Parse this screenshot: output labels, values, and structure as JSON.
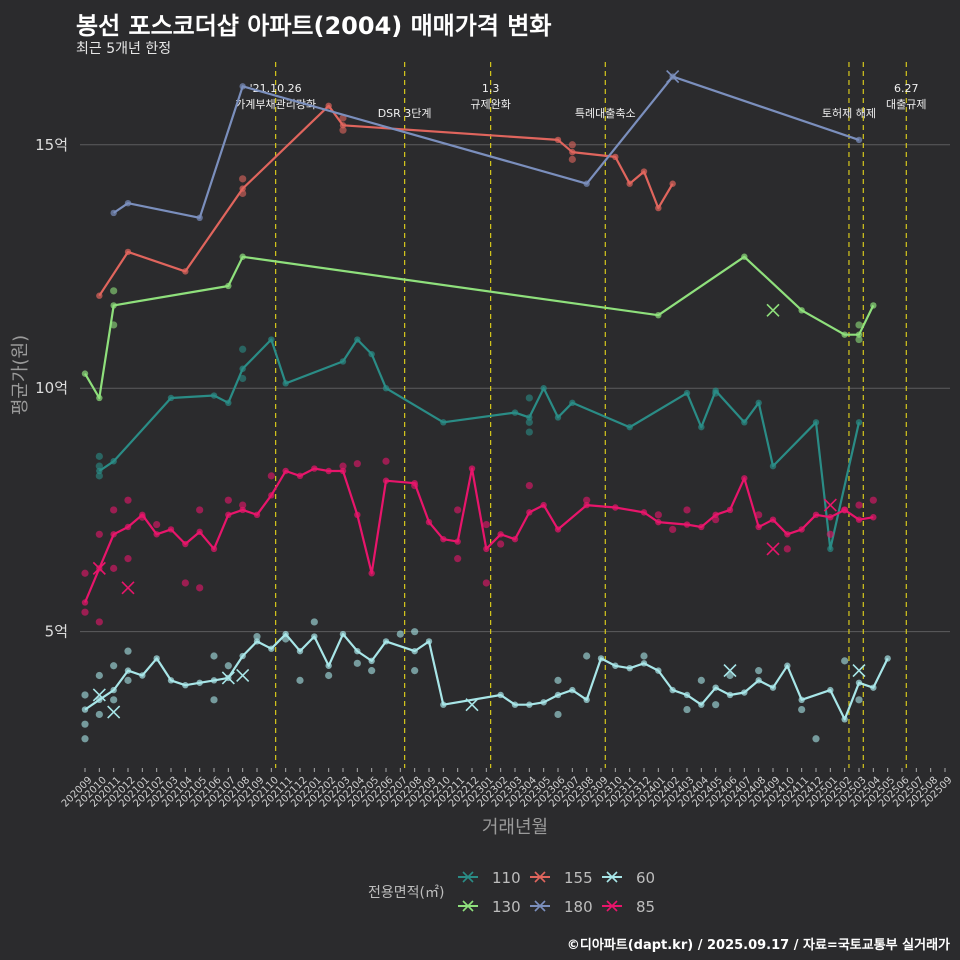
{
  "header": {
    "title": "봉선 포스코더샵 아파트(2004) 매매가격 변화",
    "subtitle": "최근 5개년 한정",
    "credit": "©디아파트(dapt.kr) / 2025.09.17 / 자료=국토교통부 실거래가"
  },
  "chart_data": {
    "type": "line",
    "xlabel": "거래년월",
    "ylabel": "평균가(원)",
    "ylim": [
      2.2,
      16.7
    ],
    "yticks": [
      {
        "value": 5,
        "label": "5억"
      },
      {
        "value": 10,
        "label": "10억"
      },
      {
        "value": 15,
        "label": "15억"
      }
    ],
    "categories": [
      "202009",
      "202010",
      "202011",
      "202012",
      "202101",
      "202102",
      "202103",
      "202104",
      "202105",
      "202106",
      "202107",
      "202108",
      "202109",
      "202110",
      "202111",
      "202112",
      "202201",
      "202202",
      "202203",
      "202204",
      "202205",
      "202206",
      "202207",
      "202208",
      "202209",
      "202210",
      "202211",
      "202212",
      "202301",
      "202302",
      "202303",
      "202304",
      "202305",
      "202306",
      "202307",
      "202308",
      "202309",
      "202310",
      "202311",
      "202312",
      "202401",
      "202402",
      "202403",
      "202404",
      "202405",
      "202406",
      "202407",
      "202408",
      "202409",
      "202410",
      "202411",
      "202412",
      "202501",
      "202502",
      "202503",
      "202504",
      "202505",
      "202506",
      "202507",
      "202508",
      "202509"
    ],
    "events": [
      {
        "x": 13.3,
        "lines": [
          "'21.10.26",
          "가계부채관리강화"
        ]
      },
      {
        "x": 22.3,
        "lines": [
          "DSR 3단계"
        ]
      },
      {
        "x": 28.3,
        "lines": [
          "1.3",
          "규제완화"
        ]
      },
      {
        "x": 36.3,
        "lines": [
          "특례대출축소"
        ]
      },
      {
        "x": 53.3,
        "lines": [
          "토허제 해제"
        ]
      },
      {
        "x": 54.3,
        "lines": [
          ""
        ]
      },
      {
        "x": 57.3,
        "lines": [
          "6.27",
          "대출규제"
        ]
      }
    ],
    "legend_title": "전용면적(㎡)",
    "series": [
      {
        "name": "110",
        "color": "#2a8c86",
        "line": [
          [
            1,
            8.3
          ],
          [
            2,
            8.5
          ],
          [
            6,
            9.8
          ],
          [
            9,
            9.85
          ],
          [
            10,
            9.7
          ],
          [
            11,
            10.4
          ],
          [
            13,
            11
          ],
          [
            14,
            10.1
          ],
          [
            18,
            10.55
          ],
          [
            19,
            11
          ],
          [
            20,
            10.7
          ],
          [
            21,
            10
          ],
          [
            25,
            9.3
          ],
          [
            30,
            9.5
          ],
          [
            31,
            9.4
          ],
          [
            32,
            10
          ],
          [
            33,
            9.4
          ],
          [
            34,
            9.7
          ],
          [
            38,
            9.2
          ],
          [
            42,
            9.9
          ],
          [
            43,
            9.2
          ],
          [
            44,
            9.95
          ],
          [
            46,
            9.3
          ],
          [
            47,
            9.7
          ],
          [
            48,
            8.4
          ],
          [
            51,
            9.3
          ],
          [
            52,
            6.7
          ],
          [
            54,
            9.3
          ]
        ],
        "dots": [
          [
            1,
            8.6
          ],
          [
            1,
            8.2
          ],
          [
            1,
            8.4
          ],
          [
            11,
            10.8
          ],
          [
            11,
            10.2
          ],
          [
            31,
            9.8
          ],
          [
            31,
            9.1
          ],
          [
            31,
            9.3
          ],
          [
            44,
            9.9
          ]
        ],
        "cross": []
      },
      {
        "name": "130",
        "color": "#8fe07c",
        "line": [
          [
            0,
            10.3
          ],
          [
            1,
            9.8
          ],
          [
            2,
            11.7
          ],
          [
            10,
            12.1
          ],
          [
            11,
            12.7
          ],
          [
            40,
            11.5
          ],
          [
            46,
            12.7
          ],
          [
            50,
            11.6
          ],
          [
            53,
            11.1
          ],
          [
            54,
            11.1
          ],
          [
            55,
            11.7
          ]
        ],
        "dots": [
          [
            2,
            12
          ],
          [
            2,
            11.3
          ],
          [
            54,
            11
          ],
          [
            54,
            11.3
          ]
        ],
        "cross": [
          [
            48,
            11.6
          ]
        ]
      },
      {
        "name": "155",
        "color": "#e0655d",
        "line": [
          [
            1,
            11.9
          ],
          [
            3,
            12.8
          ],
          [
            7,
            12.4
          ],
          [
            11,
            14.1
          ],
          [
            17,
            15.8
          ],
          [
            18,
            15.4
          ],
          [
            33,
            15.1
          ],
          [
            34,
            14.85
          ],
          [
            37,
            14.75
          ],
          [
            38,
            14.2
          ],
          [
            39,
            14.45
          ],
          [
            40,
            13.7
          ],
          [
            41,
            14.2
          ]
        ],
        "dots": [
          [
            11,
            14
          ],
          [
            11,
            14.3
          ],
          [
            18,
            15.3
          ],
          [
            18,
            15.55
          ],
          [
            34,
            15
          ],
          [
            34,
            14.7
          ]
        ],
        "cross": []
      },
      {
        "name": "180",
        "color": "#7b8fbd",
        "line": [
          [
            2,
            13.6
          ],
          [
            3,
            13.8
          ],
          [
            8,
            13.5
          ],
          [
            11,
            16.2
          ],
          [
            35,
            14.2
          ],
          [
            41,
            16.4
          ],
          [
            54,
            15.1
          ]
        ],
        "dots": [],
        "cross": [
          [
            41,
            16.4
          ]
        ]
      },
      {
        "name": "60",
        "color": "#a8e6e8",
        "line": [
          [
            0,
            3.4
          ],
          [
            1,
            3.6
          ],
          [
            2,
            3.8
          ],
          [
            3,
            4.2
          ],
          [
            4,
            4.1
          ],
          [
            5,
            4.45
          ],
          [
            6,
            4
          ],
          [
            7,
            3.9
          ],
          [
            8,
            3.95
          ],
          [
            9,
            4
          ],
          [
            10,
            4.05
          ],
          [
            11,
            4.5
          ],
          [
            12,
            4.8
          ],
          [
            13,
            4.65
          ],
          [
            14,
            4.95
          ],
          [
            15,
            4.6
          ],
          [
            16,
            4.9
          ],
          [
            17,
            4.3
          ],
          [
            18,
            4.95
          ],
          [
            19,
            4.6
          ],
          [
            20,
            4.4
          ],
          [
            21,
            4.8
          ],
          [
            23,
            4.6
          ],
          [
            24,
            4.8
          ],
          [
            25,
            3.5
          ],
          [
            29,
            3.7
          ],
          [
            30,
            3.5
          ],
          [
            31,
            3.5
          ],
          [
            32,
            3.55
          ],
          [
            33,
            3.7
          ],
          [
            34,
            3.8
          ],
          [
            35,
            3.6
          ],
          [
            36,
            4.45
          ],
          [
            37,
            4.3
          ],
          [
            38,
            4.25
          ],
          [
            39,
            4.35
          ],
          [
            40,
            4.2
          ],
          [
            41,
            3.8
          ],
          [
            42,
            3.7
          ],
          [
            43,
            3.5
          ],
          [
            44,
            3.85
          ],
          [
            45,
            3.7
          ],
          [
            46,
            3.75
          ],
          [
            47,
            4
          ],
          [
            48,
            3.85
          ],
          [
            49,
            4.3
          ],
          [
            50,
            3.6
          ],
          [
            52,
            3.8
          ],
          [
            53,
            3.2
          ],
          [
            54,
            3.95
          ],
          [
            55,
            3.85
          ],
          [
            56,
            4.45
          ]
        ],
        "dots": [
          [
            0,
            3.1
          ],
          [
            0,
            3.7
          ],
          [
            0,
            2.8
          ],
          [
            1,
            4.1
          ],
          [
            1,
            3.3
          ],
          [
            2,
            4.3
          ],
          [
            2,
            3.6
          ],
          [
            3,
            4.6
          ],
          [
            3,
            4
          ],
          [
            9,
            4.5
          ],
          [
            9,
            3.6
          ],
          [
            10,
            4.3
          ],
          [
            12,
            4.9
          ],
          [
            14,
            4.85
          ],
          [
            15,
            4
          ],
          [
            16,
            5.2
          ],
          [
            17,
            4.1
          ],
          [
            19,
            4.35
          ],
          [
            20,
            4.2
          ],
          [
            22,
            4.95
          ],
          [
            23,
            5
          ],
          [
            23,
            4.2
          ],
          [
            33,
            3.3
          ],
          [
            33,
            4
          ],
          [
            35,
            4.5
          ],
          [
            39,
            4.5
          ],
          [
            42,
            3.4
          ],
          [
            43,
            4
          ],
          [
            44,
            3.5
          ],
          [
            45,
            4.1
          ],
          [
            47,
            4.2
          ],
          [
            50,
            3.4
          ],
          [
            51,
            2.8
          ],
          [
            53,
            4.4
          ],
          [
            54,
            3.6
          ]
        ],
        "cross": [
          [
            1,
            3.7
          ],
          [
            2,
            3.35
          ],
          [
            10,
            4.05
          ],
          [
            11,
            4.1
          ],
          [
            27,
            3.5
          ],
          [
            45,
            4.2
          ],
          [
            54,
            4.2
          ]
        ]
      },
      {
        "name": "85",
        "color": "#e8156b",
        "line": [
          [
            0,
            5.6
          ],
          [
            1,
            6.3
          ],
          [
            2,
            7
          ],
          [
            3,
            7.15
          ],
          [
            4,
            7.4
          ],
          [
            5,
            7
          ],
          [
            6,
            7.1
          ],
          [
            7,
            6.8
          ],
          [
            8,
            7.05
          ],
          [
            9,
            6.7
          ],
          [
            10,
            7.4
          ],
          [
            11,
            7.5
          ],
          [
            12,
            7.4
          ],
          [
            13,
            7.8
          ],
          [
            14,
            8.3
          ],
          [
            15,
            8.2
          ],
          [
            16,
            8.35
          ],
          [
            17,
            8.3
          ],
          [
            18,
            8.3
          ],
          [
            19,
            7.4
          ],
          [
            20,
            6.2
          ],
          [
            21,
            8.1
          ],
          [
            23,
            8.05
          ],
          [
            24,
            7.25
          ],
          [
            25,
            6.9
          ],
          [
            26,
            6.85
          ],
          [
            27,
            8.35
          ],
          [
            28,
            6.7
          ],
          [
            29,
            7
          ],
          [
            30,
            6.9
          ],
          [
            31,
            7.45
          ],
          [
            32,
            7.6
          ],
          [
            33,
            7.1
          ],
          [
            35,
            7.6
          ],
          [
            37,
            7.55
          ],
          [
            39,
            7.45
          ],
          [
            40,
            7.25
          ],
          [
            42,
            7.2
          ],
          [
            43,
            7.15
          ],
          [
            44,
            7.4
          ],
          [
            45,
            7.5
          ],
          [
            46,
            8.15
          ],
          [
            47,
            7.15
          ],
          [
            48,
            7.3
          ],
          [
            49,
            7
          ],
          [
            50,
            7.1
          ],
          [
            51,
            7.4
          ],
          [
            52,
            7.35
          ],
          [
            53,
            7.5
          ],
          [
            54,
            7.3
          ],
          [
            55,
            7.35
          ]
        ],
        "dots": [
          [
            0,
            6.2
          ],
          [
            0,
            5.4
          ],
          [
            1,
            5.2
          ],
          [
            1,
            7
          ],
          [
            2,
            7.5
          ],
          [
            2,
            6.3
          ],
          [
            3,
            7.7
          ],
          [
            3,
            6.5
          ],
          [
            4,
            7.35
          ],
          [
            5,
            7.2
          ],
          [
            7,
            6
          ],
          [
            8,
            7.5
          ],
          [
            8,
            5.9
          ],
          [
            10,
            7.7
          ],
          [
            11,
            7.6
          ],
          [
            13,
            8.2
          ],
          [
            18,
            8.4
          ],
          [
            19,
            8.45
          ],
          [
            21,
            8.5
          ],
          [
            23,
            8
          ],
          [
            26,
            7.5
          ],
          [
            26,
            6.5
          ],
          [
            28,
            7.2
          ],
          [
            28,
            6
          ],
          [
            29,
            6.8
          ],
          [
            31,
            8
          ],
          [
            35,
            7.7
          ],
          [
            40,
            7.4
          ],
          [
            41,
            7.1
          ],
          [
            42,
            7.5
          ],
          [
            44,
            7.3
          ],
          [
            47,
            7.4
          ],
          [
            49,
            6.7
          ],
          [
            52,
            7
          ],
          [
            54,
            7.6
          ],
          [
            55,
            7.7
          ],
          [
            53,
            7.5
          ]
        ],
        "cross": [
          [
            1,
            6.3
          ],
          [
            3,
            5.9
          ],
          [
            48,
            6.7
          ],
          [
            52,
            7.6
          ]
        ]
      }
    ]
  }
}
